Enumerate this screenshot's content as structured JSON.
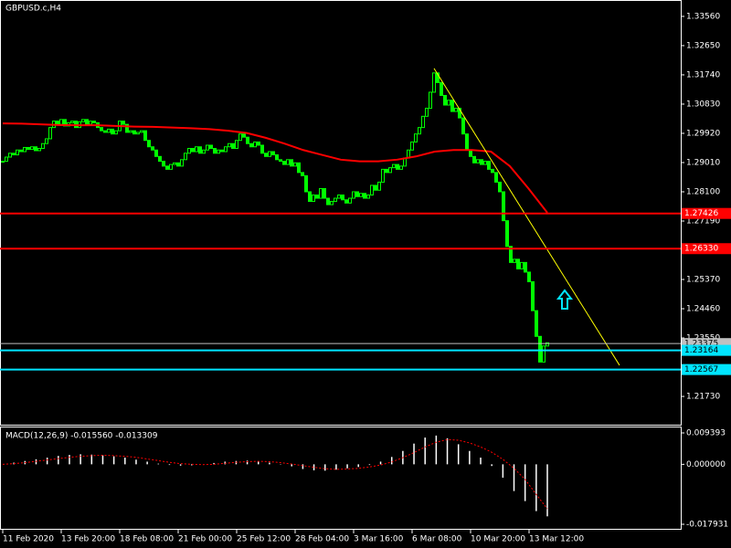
{
  "chart_data": {
    "type": "candlestick",
    "title": "GBPUSD.c,H4",
    "color": "#00ff00",
    "x_labels": [
      "11 Feb 2020",
      "13 Feb 20:00",
      "18 Feb 08:00",
      "21 Feb 00:00",
      "25 Feb 12:00",
      "28 Feb 04:00",
      "3 Mar 16:00",
      "6 Mar 08:00",
      "10 Mar 20:00",
      "13 Mar 12:00"
    ],
    "closes": [
      1.2905,
      1.2918,
      1.293,
      1.2925,
      1.294,
      1.2935,
      1.2948,
      1.2942,
      1.295,
      1.2938,
      1.2945,
      1.296,
      1.2975,
      1.301,
      1.303,
      1.302,
      1.3035,
      1.3015,
      1.3025,
      1.303,
      1.301,
      1.3028,
      1.3035,
      1.302,
      1.303,
      1.3025,
      1.301,
      1.3,
      1.2995,
      1.3005,
      1.299,
      1.3,
      1.303,
      1.302,
      1.2995,
      1.3,
      1.299,
      1.2995,
      1.3,
      1.297,
      1.295,
      1.294,
      1.292,
      1.2905,
      1.289,
      1.288,
      1.2895,
      1.29,
      1.289,
      1.291,
      1.293,
      1.2945,
      1.2935,
      1.295,
      1.293,
      1.294,
      1.2955,
      1.2945,
      1.293,
      1.294,
      1.2935,
      1.295,
      1.296,
      1.2945,
      1.297,
      1.299,
      1.298,
      1.296,
      1.295,
      1.2965,
      1.2955,
      1.293,
      1.292,
      1.2935,
      1.2925,
      1.291,
      1.2905,
      1.2895,
      1.291,
      1.289,
      1.29,
      1.287,
      1.286,
      1.281,
      1.278,
      1.28,
      1.279,
      1.282,
      1.279,
      1.277,
      1.278,
      1.279,
      1.28,
      1.2785,
      1.2775,
      1.279,
      1.281,
      1.2795,
      1.2805,
      1.279,
      1.28,
      1.283,
      1.2815,
      1.284,
      1.288,
      1.287,
      1.2885,
      1.2895,
      1.288,
      1.289,
      1.2915,
      1.294,
      1.2965,
      1.299,
      1.301,
      1.3045,
      1.307,
      1.312,
      1.318,
      1.315,
      1.311,
      1.308,
      1.3095,
      1.306,
      1.307,
      1.304,
      1.299,
      1.294,
      1.292,
      1.29,
      1.291,
      1.2895,
      1.2905,
      1.288,
      1.287,
      1.284,
      1.281,
      1.272,
      1.264,
      1.259,
      1.26,
      1.257,
      1.259,
      1.256,
      1.253,
      1.244,
      1.236,
      1.228,
      1.233,
      1.234
    ],
    "ylim": [
      1.2085,
      1.3407
    ],
    "yticks": [
      {
        "value": 1.3356,
        "label": "1.33560"
      },
      {
        "value": 1.3265,
        "label": "1.32650"
      },
      {
        "value": 1.3174,
        "label": "1.31740"
      },
      {
        "value": 1.3083,
        "label": "1.30830"
      },
      {
        "value": 1.2992,
        "label": "1.29920"
      },
      {
        "value": 1.2901,
        "label": "1.29010"
      },
      {
        "value": 1.281,
        "label": "1.28100"
      },
      {
        "value": 1.2719,
        "label": "1.27190"
      },
      {
        "value": 1.2537,
        "label": "1.25370"
      },
      {
        "value": 1.2446,
        "label": "1.24460"
      },
      {
        "value": 1.2355,
        "label": "1.23550"
      },
      {
        "value": 1.2173,
        "label": "1.21730"
      }
    ],
    "ma": {
      "color": "#ff0000",
      "values": [
        1.3023,
        1.3022,
        1.302,
        1.3018,
        1.3017,
        1.3017,
        1.3015,
        1.3013,
        1.3012,
        1.301,
        1.3008,
        1.3005,
        1.3,
        1.2993,
        1.2978,
        1.296,
        1.294,
        1.2925,
        1.291,
        1.2905,
        1.2905,
        1.291,
        1.292,
        1.2935,
        1.294,
        1.294,
        1.2935,
        1.289,
        1.282,
        1.2745
      ]
    },
    "trendline": {
      "color": "#ffff00",
      "values": [
        1.3194,
        1.227
      ]
    },
    "levels": [
      {
        "value": 1.27426,
        "color": "#ff0000"
      },
      {
        "value": 1.2633,
        "label": "1.26330",
        "color": "#ff0000"
      },
      {
        "value": 1.23375,
        "color": "#c0c0c0"
      },
      {
        "value": 1.23164,
        "color": "#00e5ff"
      },
      {
        "value": 1.22567,
        "color": "#00e5ff"
      }
    ],
    "macd": {
      "title": "MACD(12,26,9) -0.015560 -0.013309",
      "color": "#ffffff",
      "signal_color": "#ff0000",
      "ylim": [
        -0.01957,
        0.01103
      ],
      "yticks": [
        0.009393,
        {
          "value": 0,
          "label": "0.000000"
        },
        -0.017931
      ],
      "histogram": [
        0.0,
        0.0005,
        0.001,
        0.0015,
        0.002,
        0.0025,
        0.0028,
        0.003,
        0.0029,
        0.0027,
        0.0024,
        0.002,
        0.0014,
        0.0008,
        0.0002,
        -0.0002,
        -0.0004,
        -0.0003,
        0.0,
        0.0004,
        0.0008,
        0.001,
        0.0011,
        0.0009,
        0.0005,
        0.0001,
        -0.0006,
        -0.0014,
        -0.0018,
        -0.0019,
        -0.0016,
        -0.0012,
        -0.0008,
        -0.0002,
        0.0008,
        0.0022,
        0.004,
        0.0062,
        0.008,
        0.0086,
        0.0078,
        0.006,
        0.004,
        0.002,
        -0.0005,
        -0.004,
        -0.008,
        -0.011,
        -0.014,
        -0.01556
      ],
      "signal": [
        0.0,
        0.0002,
        0.0005,
        0.0009,
        0.0013,
        0.0017,
        0.0021,
        0.0024,
        0.0026,
        0.0027,
        0.0026,
        0.0024,
        0.0021,
        0.0016,
        0.0011,
        0.0006,
        0.0002,
        0.0,
        -0.0001,
        0.0,
        0.0003,
        0.0006,
        0.0008,
        0.0009,
        0.0008,
        0.0005,
        0.0001,
        -0.0004,
        -0.0009,
        -0.0013,
        -0.0015,
        -0.0014,
        -0.0012,
        -0.0008,
        -0.0002,
        0.0007,
        0.002,
        0.0035,
        0.0052,
        0.0066,
        0.0074,
        0.0072,
        0.0064,
        0.0052,
        0.0036,
        0.0015,
        -0.0012,
        -0.0045,
        -0.009,
        -0.013309
      ]
    }
  }
}
